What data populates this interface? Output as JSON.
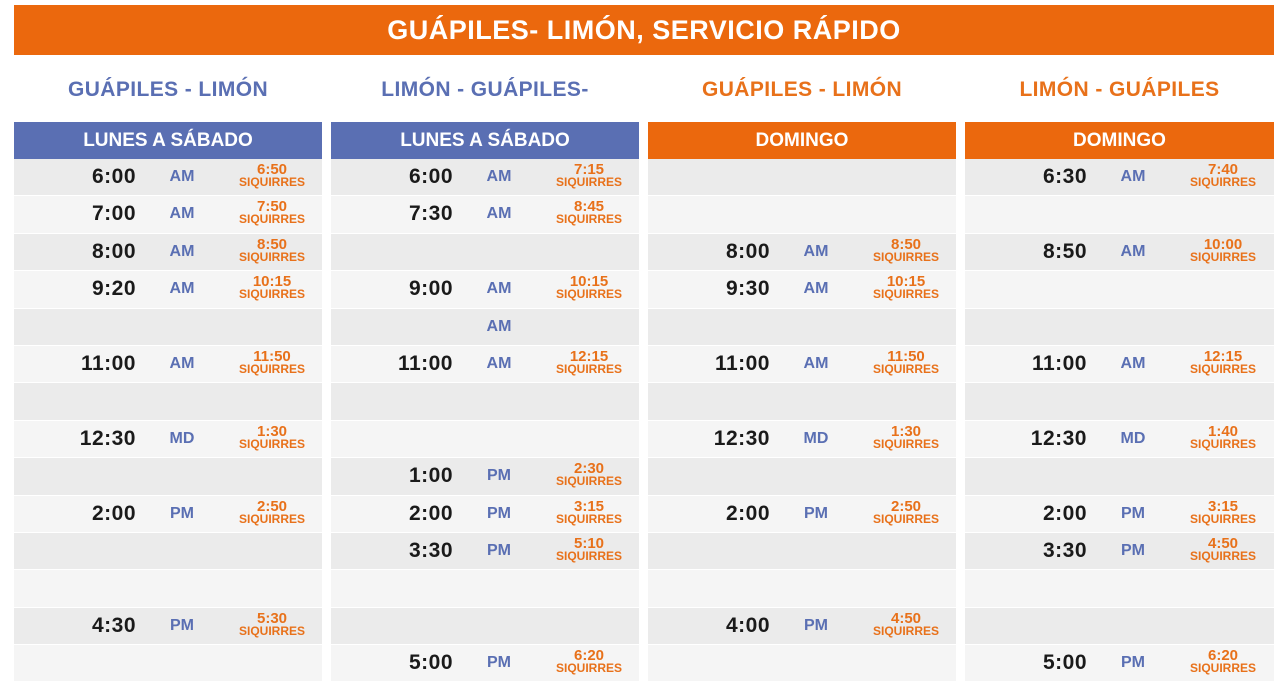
{
  "title": "GUÁPILES- LIMÓN, SERVICIO RÁPIDO",
  "columns": [
    {
      "route": "GUÁPILES - LIMÓN",
      "day": "LUNES A SÁBADO",
      "theme": "blue",
      "rows": [
        {
          "time": "6:00",
          "period": "AM",
          "arrival": "6:50",
          "dest": "SIQUIRRES"
        },
        {
          "time": "7:00",
          "period": "AM",
          "arrival": "7:50",
          "dest": "SIQUIRRES"
        },
        {
          "time": "8:00",
          "period": "AM",
          "arrival": "8:50",
          "dest": "SIQUIRRES"
        },
        {
          "time": "9:20",
          "period": "AM",
          "arrival": "10:15",
          "dest": "SIQUIRRES"
        },
        {
          "time": "",
          "period": "",
          "arrival": "",
          "dest": ""
        },
        {
          "time": "11:00",
          "period": "AM",
          "arrival": "11:50",
          "dest": "SIQUIRRES"
        },
        {
          "time": "",
          "period": "",
          "arrival": "",
          "dest": ""
        },
        {
          "time": "12:30",
          "period": "MD",
          "arrival": "1:30",
          "dest": "SIQUIRRES"
        },
        {
          "time": "",
          "period": "",
          "arrival": "",
          "dest": ""
        },
        {
          "time": "2:00",
          "period": "PM",
          "arrival": "2:50",
          "dest": "SIQUIRRES"
        },
        {
          "time": "",
          "period": "",
          "arrival": "",
          "dest": ""
        },
        {
          "time": "",
          "period": "",
          "arrival": "",
          "dest": ""
        },
        {
          "time": "4:30",
          "period": "PM",
          "arrival": "5:30",
          "dest": "SIQUIRRES"
        },
        {
          "time": "",
          "period": "",
          "arrival": "",
          "dest": ""
        }
      ]
    },
    {
      "route": "LIMÓN - GUÁPILES-",
      "day": "LUNES A SÁBADO",
      "theme": "blue",
      "rows": [
        {
          "time": "6:00",
          "period": "AM",
          "arrival": "7:15",
          "dest": "SIQUIRRES"
        },
        {
          "time": "7:30",
          "period": "AM",
          "arrival": "8:45",
          "dest": "SIQUIRRES"
        },
        {
          "time": "",
          "period": "",
          "arrival": "",
          "dest": ""
        },
        {
          "time": "9:00",
          "period": "AM",
          "arrival": "10:15",
          "dest": "SIQUIRRES"
        },
        {
          "time": "",
          "period": "AM",
          "arrival": "",
          "dest": ""
        },
        {
          "time": "11:00",
          "period": "AM",
          "arrival": "12:15",
          "dest": "SIQUIRRES"
        },
        {
          "time": "",
          "period": "",
          "arrival": "",
          "dest": ""
        },
        {
          "time": "",
          "period": "",
          "arrival": "",
          "dest": ""
        },
        {
          "time": "1:00",
          "period": "PM",
          "arrival": "2:30",
          "dest": "SIQUIRRES"
        },
        {
          "time": "2:00",
          "period": "PM",
          "arrival": "3:15",
          "dest": "SIQUIRRES"
        },
        {
          "time": "3:30",
          "period": "PM",
          "arrival": "5:10",
          "dest": "SIQUIRRES"
        },
        {
          "time": "",
          "period": "",
          "arrival": "",
          "dest": ""
        },
        {
          "time": "",
          "period": "",
          "arrival": "",
          "dest": ""
        },
        {
          "time": "5:00",
          "period": "PM",
          "arrival": "6:20",
          "dest": "SIQUIRRES"
        }
      ]
    },
    {
      "route": "GUÁPILES - LIMÓN",
      "day": "DOMINGO",
      "theme": "orange",
      "rows": [
        {
          "time": "",
          "period": "",
          "arrival": "",
          "dest": ""
        },
        {
          "time": "",
          "period": "",
          "arrival": "",
          "dest": ""
        },
        {
          "time": "8:00",
          "period": "AM",
          "arrival": "8:50",
          "dest": "SIQUIRRES"
        },
        {
          "time": "9:30",
          "period": "AM",
          "arrival": "10:15",
          "dest": "SIQUIRRES"
        },
        {
          "time": "",
          "period": "",
          "arrival": "",
          "dest": ""
        },
        {
          "time": "11:00",
          "period": "AM",
          "arrival": "11:50",
          "dest": "SIQUIRRES"
        },
        {
          "time": "",
          "period": "",
          "arrival": "",
          "dest": ""
        },
        {
          "time": "12:30",
          "period": "MD",
          "arrival": "1:30",
          "dest": "SIQUIRRES"
        },
        {
          "time": "",
          "period": "",
          "arrival": "",
          "dest": ""
        },
        {
          "time": "2:00",
          "period": "PM",
          "arrival": "2:50",
          "dest": "SIQUIRRES"
        },
        {
          "time": "",
          "period": "",
          "arrival": "",
          "dest": ""
        },
        {
          "time": "",
          "period": "",
          "arrival": "",
          "dest": ""
        },
        {
          "time": "4:00",
          "period": "PM",
          "arrival": "4:50",
          "dest": "SIQUIRRES"
        },
        {
          "time": "",
          "period": "",
          "arrival": "",
          "dest": ""
        }
      ]
    },
    {
      "route": "LIMÓN - GUÁPILES",
      "day": "DOMINGO",
      "theme": "orange",
      "rows": [
        {
          "time": "6:30",
          "period": "AM",
          "arrival": "7:40",
          "dest": "SIQUIRRES"
        },
        {
          "time": "",
          "period": "",
          "arrival": "",
          "dest": ""
        },
        {
          "time": "8:50",
          "period": "AM",
          "arrival": "10:00",
          "dest": "SIQUIRRES"
        },
        {
          "time": "",
          "period": "",
          "arrival": "",
          "dest": ""
        },
        {
          "time": "",
          "period": "",
          "arrival": "",
          "dest": ""
        },
        {
          "time": "11:00",
          "period": "AM",
          "arrival": "12:15",
          "dest": "SIQUIRRES"
        },
        {
          "time": "",
          "period": "",
          "arrival": "",
          "dest": ""
        },
        {
          "time": "12:30",
          "period": "MD",
          "arrival": "1:40",
          "dest": "SIQUIRRES"
        },
        {
          "time": "",
          "period": "",
          "arrival": "",
          "dest": ""
        },
        {
          "time": "2:00",
          "period": "PM",
          "arrival": "3:15",
          "dest": "SIQUIRRES"
        },
        {
          "time": "3:30",
          "period": "PM",
          "arrival": "4:50",
          "dest": "SIQUIRRES"
        },
        {
          "time": "",
          "period": "",
          "arrival": "",
          "dest": ""
        },
        {
          "time": "",
          "period": "",
          "arrival": "",
          "dest": ""
        },
        {
          "time": "5:00",
          "period": "PM",
          "arrival": "6:20",
          "dest": "SIQUIRRES"
        }
      ]
    }
  ]
}
